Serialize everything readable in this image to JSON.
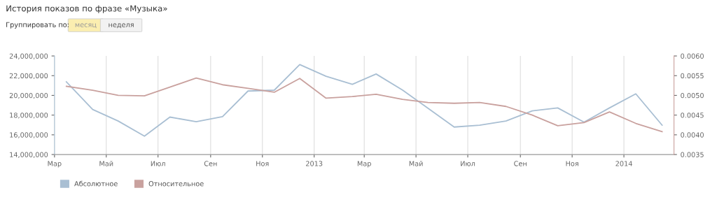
{
  "chart_data": {
    "type": "line",
    "title": "История показов по фразе «Музыка»",
    "annotations": [
      "Группировать по:",
      "месяц",
      "неделя"
    ],
    "x": [
      "2012-03-15",
      "2012-04-15",
      "2012-05-15",
      "2012-06-15",
      "2012-07-15",
      "2012-08-15",
      "2012-09-15",
      "2012-10-15",
      "2012-11-15",
      "2012-12-15",
      "2013-01-15",
      "2013-02-15",
      "2013-03-15",
      "2013-04-15",
      "2013-05-15",
      "2013-06-15",
      "2013-07-15",
      "2013-08-15",
      "2013-09-15",
      "2013-10-15",
      "2013-11-15",
      "2013-12-15",
      "2014-01-15",
      "2014-02-15"
    ],
    "series": [
      {
        "name": "Абсолютное",
        "color": "#a9bfd3",
        "values": [
          21380000,
          18570000,
          17400000,
          15870000,
          17800000,
          17330000,
          17840000,
          20440000,
          20530000,
          23130000,
          21940000,
          21120000,
          22170000,
          20550000,
          18700000,
          16790000,
          16980000,
          17400000,
          18430000,
          18730000,
          17280000,
          18730000,
          20160000,
          16980000
        ]
      },
      {
        "name": "Относительное",
        "color": "#c9a19e",
        "axis": "y2",
        "values": [
          0.00523,
          0.00513,
          0.005,
          0.00499,
          0.00521,
          0.00544,
          0.00527,
          0.00518,
          0.00508,
          0.00543,
          0.00493,
          0.00497,
          0.00503,
          0.0049,
          0.00482,
          0.0048,
          0.00482,
          0.00472,
          0.0045,
          0.00423,
          0.00431,
          0.00458,
          0.00429,
          0.00408
        ]
      }
    ],
    "xlim": [
      "2012-03-01",
      "2014-03-01"
    ],
    "xticks": [
      {
        "value": "2012-03-01",
        "label": "Мар"
      },
      {
        "value": "2012-05-01",
        "label": "Май"
      },
      {
        "value": "2012-07-01",
        "label": "Июл"
      },
      {
        "value": "2012-09-01",
        "label": "Сен"
      },
      {
        "value": "2012-11-01",
        "label": "Ноя"
      },
      {
        "value": "2013-01-01",
        "label": "2013"
      },
      {
        "value": "2013-03-01",
        "label": "Мар"
      },
      {
        "value": "2013-05-01",
        "label": "Май"
      },
      {
        "value": "2013-07-01",
        "label": "Июл"
      },
      {
        "value": "2013-09-01",
        "label": "Сен"
      },
      {
        "value": "2013-11-01",
        "label": "Ноя"
      },
      {
        "value": "2014-01-01",
        "label": "2014"
      }
    ],
    "ylim": [
      14000000,
      24000000
    ],
    "yticks": [
      {
        "value": 14000000,
        "label": "14,000,000"
      },
      {
        "value": 16000000,
        "label": "16,000,000"
      },
      {
        "value": 18000000,
        "label": "18,000,000"
      },
      {
        "value": 20000000,
        "label": "20,000,000"
      },
      {
        "value": 22000000,
        "label": "22,000,000"
      },
      {
        "value": 24000000,
        "label": "24,000,000"
      }
    ],
    "y2lim": [
      0.0035,
      0.006
    ],
    "y2ticks": [
      {
        "value": 0.0035,
        "label": "0.0035"
      },
      {
        "value": 0.004,
        "label": "0.0040"
      },
      {
        "value": 0.0045,
        "label": "0.0045"
      },
      {
        "value": 0.005,
        "label": "0.0050"
      },
      {
        "value": 0.0055,
        "label": "0.0055"
      },
      {
        "value": 0.006,
        "label": "0.0060"
      }
    ],
    "grid": "x",
    "legend": "bottom left",
    "marker": "none",
    "line_style": "solid"
  }
}
